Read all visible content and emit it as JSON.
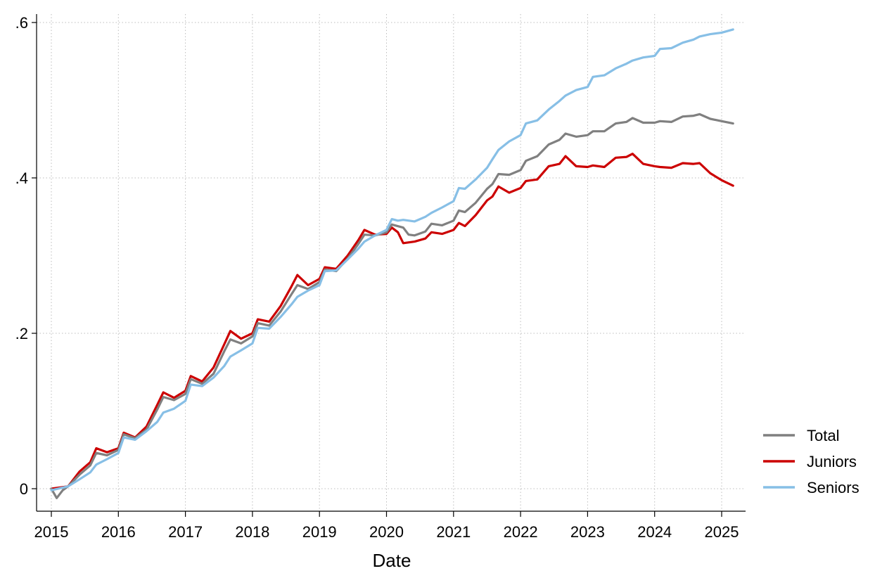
{
  "chart_data": {
    "type": "line",
    "title": "",
    "xlabel": "Date",
    "ylabel": "",
    "x_is_year_fraction_axis": true,
    "xlim": [
      2015,
      2025.17
    ],
    "ylim": [
      -0.015,
      0.61
    ],
    "xticks": [
      2015,
      2016,
      2017,
      2018,
      2019,
      2020,
      2021,
      2022,
      2023,
      2024,
      2025
    ],
    "xtick_labels": [
      "2015",
      "2016",
      "2017",
      "2018",
      "2019",
      "2020",
      "2021",
      "2022",
      "2023",
      "2024",
      "2025"
    ],
    "yticks": [
      0,
      0.2,
      0.4,
      0.6
    ],
    "ytick_labels": [
      "0",
      ".2",
      ".4",
      ".6"
    ],
    "grid": "dotted, both axes",
    "legend_position": "right, bottom",
    "series": [
      {
        "name": "Juniors",
        "color": "#cc0000",
        "points": [
          [
            2015.0,
            0.0
          ],
          [
            2015.25,
            0.003
          ],
          [
            2015.42,
            0.022
          ],
          [
            2015.58,
            0.034
          ],
          [
            2015.67,
            0.052
          ],
          [
            2015.83,
            0.047
          ],
          [
            2016.0,
            0.052
          ],
          [
            2016.08,
            0.072
          ],
          [
            2016.25,
            0.066
          ],
          [
            2016.42,
            0.08
          ],
          [
            2016.58,
            0.108
          ],
          [
            2016.67,
            0.124
          ],
          [
            2016.83,
            0.117
          ],
          [
            2017.0,
            0.126
          ],
          [
            2017.08,
            0.145
          ],
          [
            2017.25,
            0.138
          ],
          [
            2017.42,
            0.156
          ],
          [
            2017.58,
            0.186
          ],
          [
            2017.67,
            0.203
          ],
          [
            2017.83,
            0.193
          ],
          [
            2018.0,
            0.2
          ],
          [
            2018.08,
            0.218
          ],
          [
            2018.25,
            0.215
          ],
          [
            2018.42,
            0.235
          ],
          [
            2018.58,
            0.26
          ],
          [
            2018.67,
            0.275
          ],
          [
            2018.83,
            0.262
          ],
          [
            2019.0,
            0.27
          ],
          [
            2019.08,
            0.285
          ],
          [
            2019.25,
            0.283
          ],
          [
            2019.42,
            0.3
          ],
          [
            2019.58,
            0.32
          ],
          [
            2019.67,
            0.333
          ],
          [
            2019.83,
            0.327
          ],
          [
            2020.0,
            0.328
          ],
          [
            2020.08,
            0.336
          ],
          [
            2020.17,
            0.33
          ],
          [
            2020.25,
            0.316
          ],
          [
            2020.42,
            0.318
          ],
          [
            2020.58,
            0.322
          ],
          [
            2020.67,
            0.33
          ],
          [
            2020.83,
            0.328
          ],
          [
            2021.0,
            0.333
          ],
          [
            2021.08,
            0.342
          ],
          [
            2021.17,
            0.338
          ],
          [
            2021.33,
            0.352
          ],
          [
            2021.5,
            0.371
          ],
          [
            2021.58,
            0.376
          ],
          [
            2021.67,
            0.389
          ],
          [
            2021.83,
            0.381
          ],
          [
            2022.0,
            0.387
          ],
          [
            2022.08,
            0.396
          ],
          [
            2022.25,
            0.398
          ],
          [
            2022.42,
            0.415
          ],
          [
            2022.58,
            0.418
          ],
          [
            2022.67,
            0.428
          ],
          [
            2022.83,
            0.415
          ],
          [
            2023.0,
            0.414
          ],
          [
            2023.08,
            0.416
          ],
          [
            2023.25,
            0.414
          ],
          [
            2023.42,
            0.426
          ],
          [
            2023.58,
            0.427
          ],
          [
            2023.67,
            0.431
          ],
          [
            2023.83,
            0.418
          ],
          [
            2024.0,
            0.415
          ],
          [
            2024.08,
            0.414
          ],
          [
            2024.25,
            0.413
          ],
          [
            2024.42,
            0.419
          ],
          [
            2024.58,
            0.418
          ],
          [
            2024.67,
            0.419
          ],
          [
            2024.83,
            0.406
          ],
          [
            2025.0,
            0.397
          ],
          [
            2025.17,
            0.39
          ]
        ]
      },
      {
        "name": "Total",
        "color": "#808080",
        "points": [
          [
            2015.0,
            0.0
          ],
          [
            2015.08,
            -0.012
          ],
          [
            2015.17,
            -0.002
          ],
          [
            2015.25,
            0.003
          ],
          [
            2015.42,
            0.018
          ],
          [
            2015.58,
            0.03
          ],
          [
            2015.67,
            0.046
          ],
          [
            2015.83,
            0.043
          ],
          [
            2016.0,
            0.05
          ],
          [
            2016.08,
            0.07
          ],
          [
            2016.25,
            0.065
          ],
          [
            2016.42,
            0.076
          ],
          [
            2016.58,
            0.102
          ],
          [
            2016.67,
            0.118
          ],
          [
            2016.83,
            0.114
          ],
          [
            2017.0,
            0.122
          ],
          [
            2017.08,
            0.141
          ],
          [
            2017.25,
            0.135
          ],
          [
            2017.42,
            0.148
          ],
          [
            2017.58,
            0.177
          ],
          [
            2017.67,
            0.192
          ],
          [
            2017.83,
            0.187
          ],
          [
            2018.0,
            0.196
          ],
          [
            2018.08,
            0.213
          ],
          [
            2018.25,
            0.21
          ],
          [
            2018.42,
            0.228
          ],
          [
            2018.58,
            0.25
          ],
          [
            2018.67,
            0.262
          ],
          [
            2018.83,
            0.257
          ],
          [
            2019.0,
            0.266
          ],
          [
            2019.08,
            0.282
          ],
          [
            2019.25,
            0.28
          ],
          [
            2019.42,
            0.296
          ],
          [
            2019.58,
            0.315
          ],
          [
            2019.67,
            0.327
          ],
          [
            2019.83,
            0.326
          ],
          [
            2020.0,
            0.33
          ],
          [
            2020.08,
            0.34
          ],
          [
            2020.25,
            0.336
          ],
          [
            2020.33,
            0.327
          ],
          [
            2020.42,
            0.326
          ],
          [
            2020.58,
            0.331
          ],
          [
            2020.67,
            0.341
          ],
          [
            2020.83,
            0.339
          ],
          [
            2021.0,
            0.345
          ],
          [
            2021.08,
            0.358
          ],
          [
            2021.17,
            0.356
          ],
          [
            2021.33,
            0.368
          ],
          [
            2021.5,
            0.386
          ],
          [
            2021.58,
            0.392
          ],
          [
            2021.67,
            0.405
          ],
          [
            2021.83,
            0.404
          ],
          [
            2022.0,
            0.41
          ],
          [
            2022.08,
            0.422
          ],
          [
            2022.25,
            0.428
          ],
          [
            2022.42,
            0.443
          ],
          [
            2022.58,
            0.449
          ],
          [
            2022.67,
            0.457
          ],
          [
            2022.83,
            0.453
          ],
          [
            2023.0,
            0.455
          ],
          [
            2023.08,
            0.46
          ],
          [
            2023.25,
            0.46
          ],
          [
            2023.42,
            0.47
          ],
          [
            2023.58,
            0.472
          ],
          [
            2023.67,
            0.477
          ],
          [
            2023.83,
            0.471
          ],
          [
            2024.0,
            0.471
          ],
          [
            2024.08,
            0.473
          ],
          [
            2024.25,
            0.472
          ],
          [
            2024.42,
            0.479
          ],
          [
            2024.58,
            0.48
          ],
          [
            2024.67,
            0.482
          ],
          [
            2024.83,
            0.476
          ],
          [
            2025.0,
            0.473
          ],
          [
            2025.17,
            0.47
          ]
        ]
      },
      {
        "name": "Seniors",
        "color": "#87bfe6",
        "points": [
          [
            2015.0,
            -0.002
          ],
          [
            2015.25,
            0.003
          ],
          [
            2015.42,
            0.012
          ],
          [
            2015.58,
            0.021
          ],
          [
            2015.67,
            0.031
          ],
          [
            2015.83,
            0.038
          ],
          [
            2016.0,
            0.046
          ],
          [
            2016.08,
            0.066
          ],
          [
            2016.25,
            0.063
          ],
          [
            2016.42,
            0.074
          ],
          [
            2016.58,
            0.086
          ],
          [
            2016.67,
            0.098
          ],
          [
            2016.83,
            0.103
          ],
          [
            2017.0,
            0.113
          ],
          [
            2017.08,
            0.134
          ],
          [
            2017.25,
            0.132
          ],
          [
            2017.42,
            0.143
          ],
          [
            2017.58,
            0.158
          ],
          [
            2017.67,
            0.17
          ],
          [
            2017.83,
            0.178
          ],
          [
            2018.0,
            0.187
          ],
          [
            2018.08,
            0.207
          ],
          [
            2018.25,
            0.206
          ],
          [
            2018.42,
            0.221
          ],
          [
            2018.58,
            0.237
          ],
          [
            2018.67,
            0.247
          ],
          [
            2018.83,
            0.255
          ],
          [
            2019.0,
            0.262
          ],
          [
            2019.08,
            0.28
          ],
          [
            2019.25,
            0.281
          ],
          [
            2019.42,
            0.295
          ],
          [
            2019.58,
            0.309
          ],
          [
            2019.67,
            0.318
          ],
          [
            2019.83,
            0.326
          ],
          [
            2020.0,
            0.333
          ],
          [
            2020.08,
            0.347
          ],
          [
            2020.17,
            0.345
          ],
          [
            2020.25,
            0.346
          ],
          [
            2020.42,
            0.344
          ],
          [
            2020.58,
            0.35
          ],
          [
            2020.67,
            0.355
          ],
          [
            2020.83,
            0.362
          ],
          [
            2021.0,
            0.37
          ],
          [
            2021.08,
            0.387
          ],
          [
            2021.17,
            0.386
          ],
          [
            2021.33,
            0.398
          ],
          [
            2021.5,
            0.413
          ],
          [
            2021.58,
            0.424
          ],
          [
            2021.67,
            0.436
          ],
          [
            2021.83,
            0.447
          ],
          [
            2022.0,
            0.455
          ],
          [
            2022.08,
            0.47
          ],
          [
            2022.25,
            0.474
          ],
          [
            2022.42,
            0.488
          ],
          [
            2022.58,
            0.499
          ],
          [
            2022.67,
            0.506
          ],
          [
            2022.83,
            0.513
          ],
          [
            2023.0,
            0.517
          ],
          [
            2023.08,
            0.53
          ],
          [
            2023.25,
            0.532
          ],
          [
            2023.42,
            0.541
          ],
          [
            2023.58,
            0.547
          ],
          [
            2023.67,
            0.551
          ],
          [
            2023.83,
            0.555
          ],
          [
            2024.0,
            0.557
          ],
          [
            2024.08,
            0.566
          ],
          [
            2024.25,
            0.567
          ],
          [
            2024.42,
            0.574
          ],
          [
            2024.58,
            0.578
          ],
          [
            2024.67,
            0.582
          ],
          [
            2024.83,
            0.585
          ],
          [
            2025.0,
            0.587
          ],
          [
            2025.17,
            0.591
          ]
        ]
      }
    ],
    "legend": [
      {
        "name": "Total",
        "color": "#808080"
      },
      {
        "name": "Juniors",
        "color": "#cc0000"
      },
      {
        "name": "Seniors",
        "color": "#87bfe6"
      }
    ]
  }
}
